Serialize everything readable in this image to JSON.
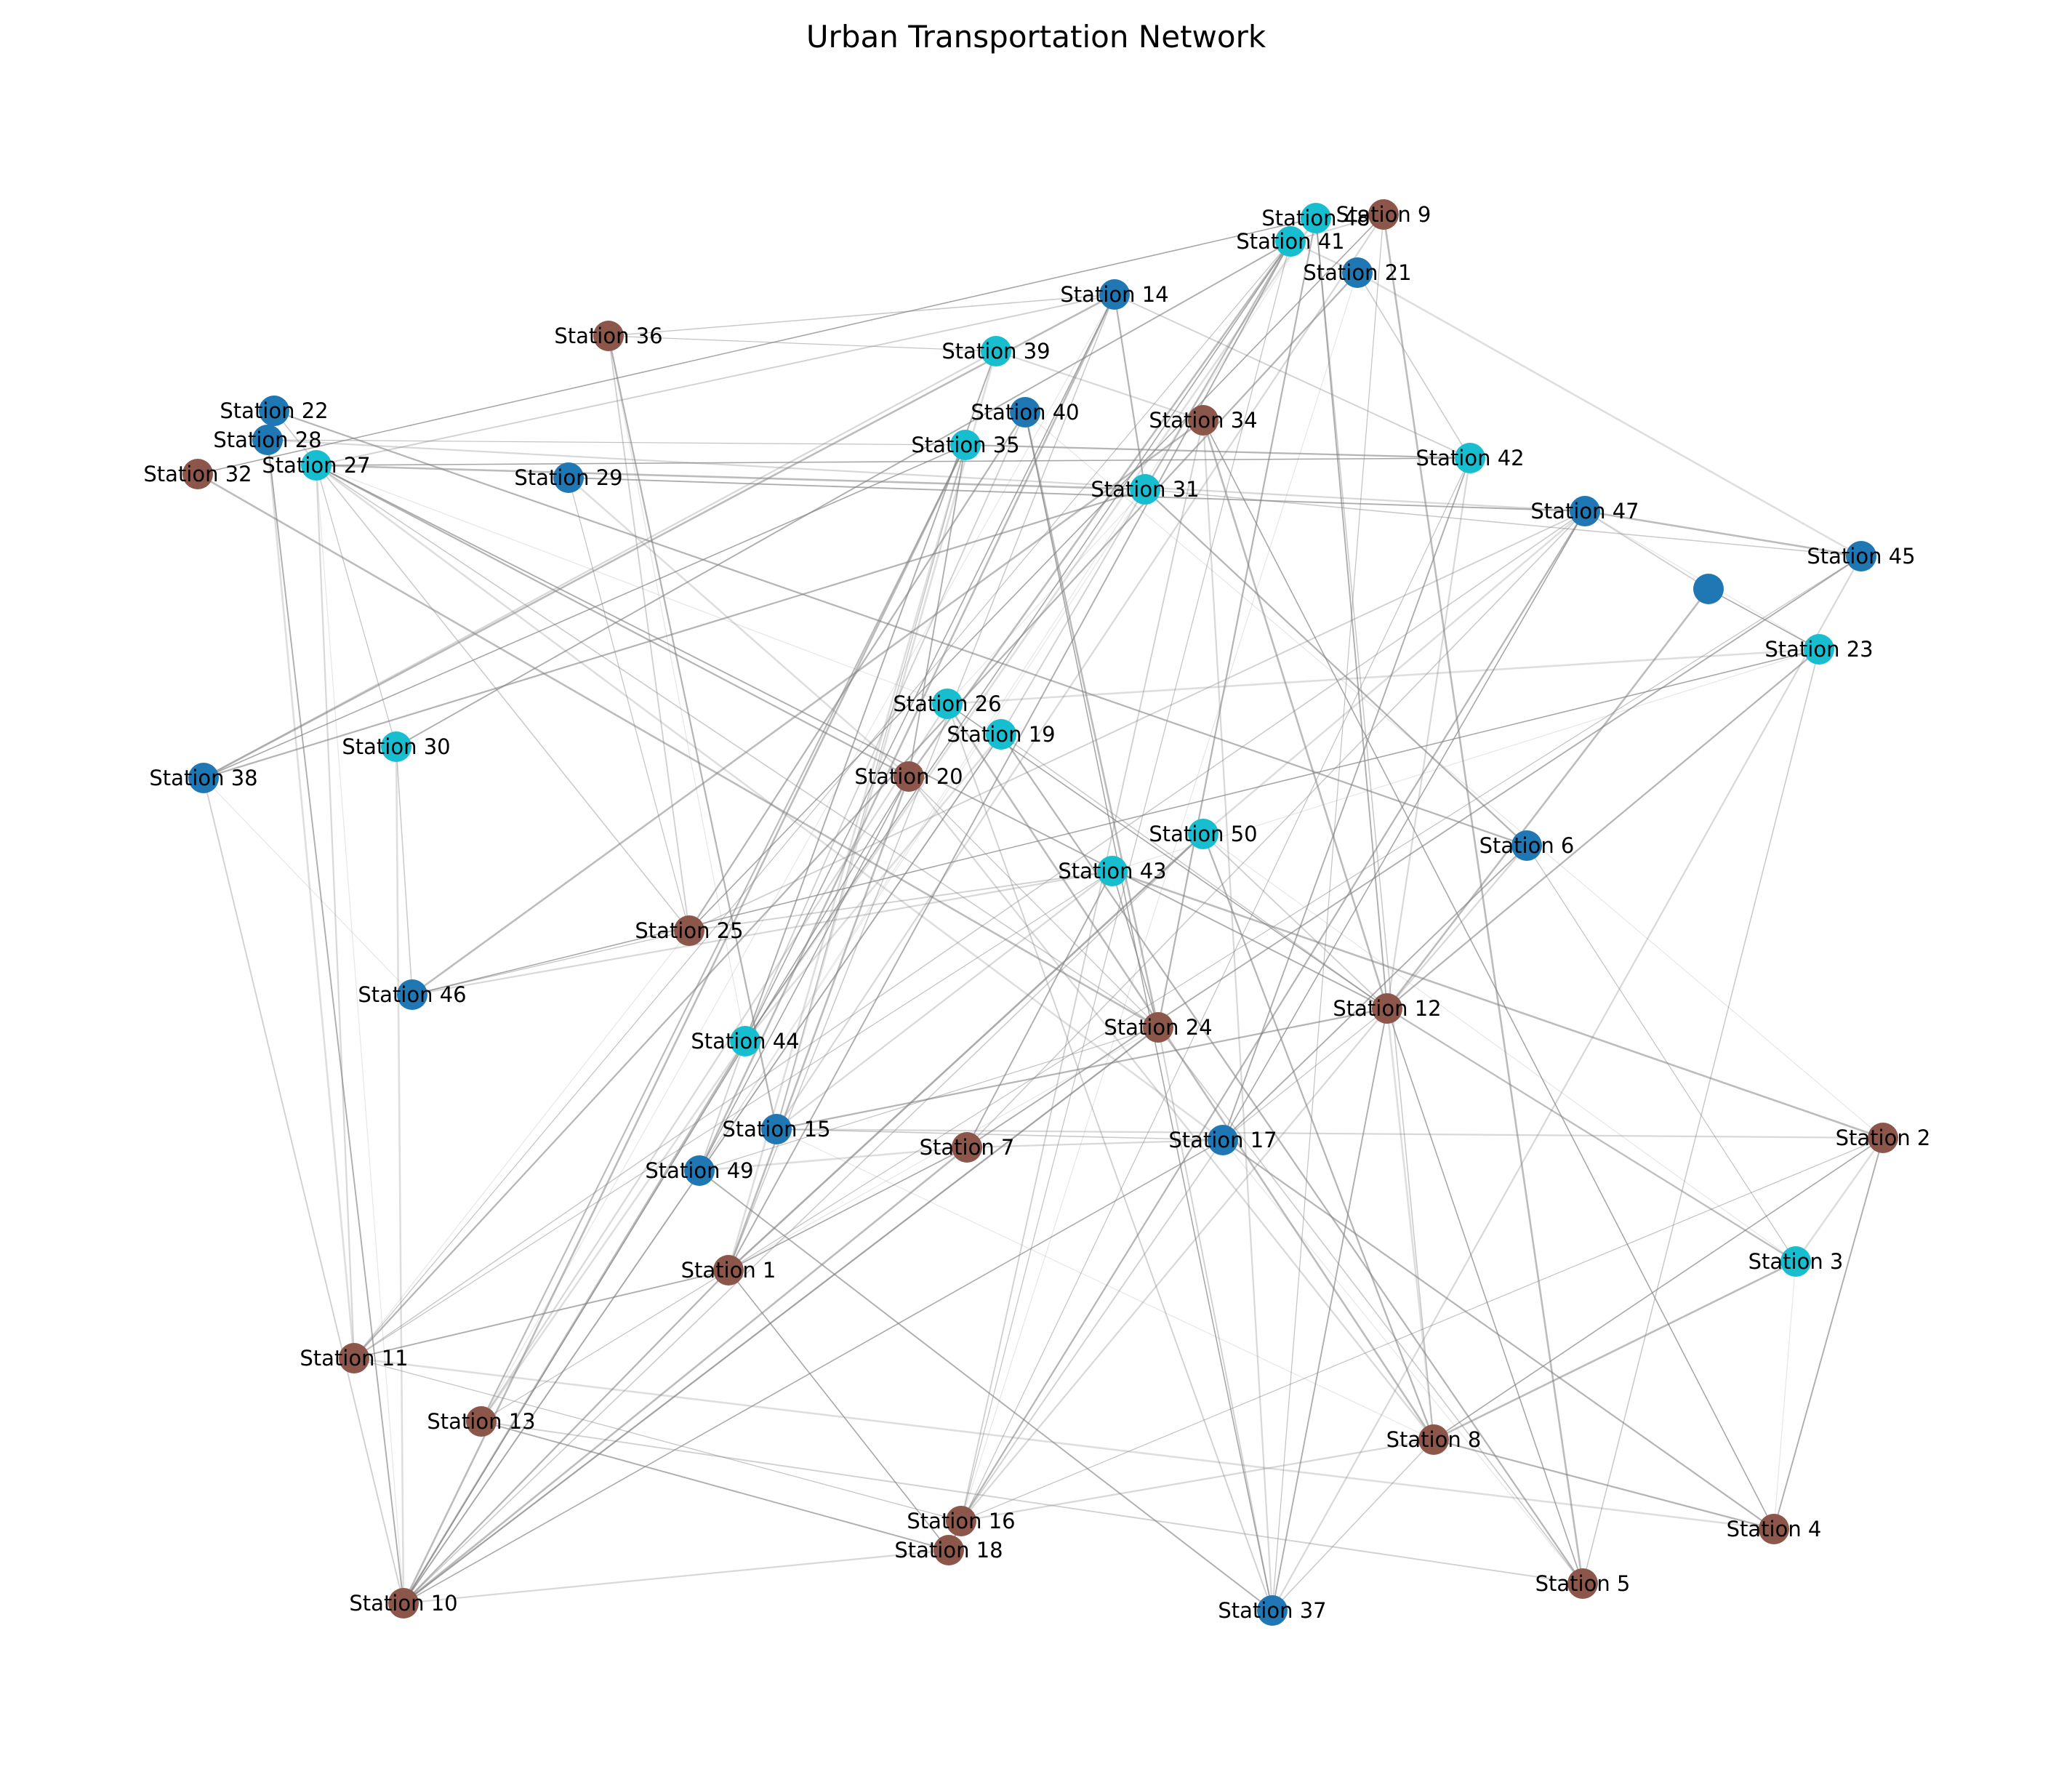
{
  "title": "Urban Transportation Network",
  "colors": {
    "brown": "#8c564b",
    "blue": "#1f77b4",
    "cyan": "#17becf",
    "edge": "#808080",
    "background": "#ffffff"
  },
  "nodes": [
    {
      "id": 1,
      "label": "Station 1",
      "color": "brown"
    },
    {
      "id": 2,
      "label": "Station 2",
      "color": "brown"
    },
    {
      "id": 3,
      "label": "Station 3",
      "color": "cyan"
    },
    {
      "id": 4,
      "label": "Station 4",
      "color": "brown"
    },
    {
      "id": 5,
      "label": "Station 5",
      "color": "brown"
    },
    {
      "id": 6,
      "label": "Station 6",
      "color": "blue"
    },
    {
      "id": 7,
      "label": "Station 7",
      "color": "brown"
    },
    {
      "id": 8,
      "label": "Station 8",
      "color": "brown"
    },
    {
      "id": 9,
      "label": "Station 9",
      "color": "brown"
    },
    {
      "id": 10,
      "label": "Station 10",
      "color": "brown"
    },
    {
      "id": 11,
      "label": "Station 11",
      "color": "brown"
    },
    {
      "id": 12,
      "label": "Station 12",
      "color": "brown"
    },
    {
      "id": 13,
      "label": "Station 13",
      "color": "brown"
    },
    {
      "id": 14,
      "label": "Station 14",
      "color": "blue"
    },
    {
      "id": 15,
      "label": "Station 15",
      "color": "blue"
    },
    {
      "id": 16,
      "label": "Station 16",
      "color": "brown"
    },
    {
      "id": 17,
      "label": "Station 17",
      "color": "blue"
    },
    {
      "id": 18,
      "label": "Station 18",
      "color": "brown"
    },
    {
      "id": 19,
      "label": "Station 19",
      "color": "cyan"
    },
    {
      "id": 20,
      "label": "Station 20",
      "color": "brown"
    },
    {
      "id": 21,
      "label": "Station 21",
      "color": "blue"
    },
    {
      "id": 22,
      "label": "Station 22",
      "color": "blue"
    },
    {
      "id": 23,
      "label": "Station 23",
      "color": "cyan"
    },
    {
      "id": 24,
      "label": "Station 24",
      "color": "brown"
    },
    {
      "id": 25,
      "label": "Station 25",
      "color": "brown"
    },
    {
      "id": 26,
      "label": "Station 26",
      "color": "cyan"
    },
    {
      "id": 27,
      "label": "Station 27",
      "color": "cyan"
    },
    {
      "id": 28,
      "label": "Station 28",
      "color": "blue"
    },
    {
      "id": 29,
      "label": "Station 29",
      "color": "blue"
    },
    {
      "id": 30,
      "label": "Station 30",
      "color": "cyan"
    },
    {
      "id": 31,
      "label": "Station 31",
      "color": "cyan"
    },
    {
      "id": 32,
      "label": "Station 32",
      "color": "brown"
    },
    {
      "id": 33,
      "label": "",
      "color": "blue"
    },
    {
      "id": 34,
      "label": "Station 34",
      "color": "brown"
    },
    {
      "id": 35,
      "label": "Station 35",
      "color": "cyan"
    },
    {
      "id": 36,
      "label": "Station 36",
      "color": "brown"
    },
    {
      "id": 37,
      "label": "Station 37",
      "color": "blue"
    },
    {
      "id": 38,
      "label": "Station 38",
      "color": "blue"
    },
    {
      "id": 39,
      "label": "Station 39",
      "color": "cyan"
    },
    {
      "id": 40,
      "label": "Station 40",
      "color": "blue"
    },
    {
      "id": 41,
      "label": "Station 41",
      "color": "cyan"
    },
    {
      "id": 42,
      "label": "Station 42",
      "color": "cyan"
    },
    {
      "id": 43,
      "label": "Station 43",
      "color": "cyan"
    },
    {
      "id": 44,
      "label": "Station 44",
      "color": "cyan"
    },
    {
      "id": 45,
      "label": "Station 45",
      "color": "blue"
    },
    {
      "id": 46,
      "label": "Station 46",
      "color": "blue"
    },
    {
      "id": 47,
      "label": "Station 47",
      "color": "blue"
    },
    {
      "id": 48,
      "label": "Station 48",
      "color": "cyan"
    },
    {
      "id": 49,
      "label": "Station 49",
      "color": "blue"
    },
    {
      "id": 50,
      "label": "Station 50",
      "color": "cyan"
    }
  ],
  "edges": [
    [
      27,
      26
    ],
    [
      27,
      20
    ],
    [
      27,
      24
    ],
    [
      27,
      17
    ],
    [
      27,
      12
    ],
    [
      27,
      30
    ],
    [
      27,
      11
    ],
    [
      27,
      42
    ],
    [
      27,
      31
    ],
    [
      27,
      14
    ],
    [
      27,
      10
    ],
    [
      22,
      6
    ],
    [
      22,
      25
    ],
    [
      28,
      11
    ],
    [
      28,
      10
    ],
    [
      28,
      35
    ],
    [
      28,
      47
    ],
    [
      32,
      48
    ],
    [
      32,
      24
    ],
    [
      36,
      25
    ],
    [
      36,
      44
    ],
    [
      36,
      15
    ],
    [
      36,
      14
    ],
    [
      29,
      20
    ],
    [
      29,
      47
    ],
    [
      29,
      25
    ],
    [
      38,
      39
    ],
    [
      38,
      35
    ],
    [
      38,
      14
    ],
    [
      38,
      10
    ],
    [
      38,
      46
    ],
    [
      38,
      31
    ],
    [
      30,
      46
    ],
    [
      30,
      10
    ],
    [
      30,
      41
    ],
    [
      46,
      25
    ],
    [
      46,
      43
    ],
    [
      46,
      23
    ],
    [
      46,
      34
    ],
    [
      25,
      43
    ],
    [
      25,
      11
    ],
    [
      25,
      40
    ],
    [
      11,
      47
    ],
    [
      11,
      4
    ],
    [
      11,
      1
    ],
    [
      11,
      41
    ],
    [
      10,
      18
    ],
    [
      10,
      20
    ],
    [
      10,
      35
    ],
    [
      10,
      24
    ],
    [
      10,
      19
    ],
    [
      10,
      1
    ],
    [
      10,
      17
    ],
    [
      13,
      35
    ],
    [
      13,
      18
    ],
    [
      13,
      1
    ],
    [
      13,
      26
    ],
    [
      14,
      44
    ],
    [
      14,
      49
    ],
    [
      14,
      42
    ],
    [
      14,
      13
    ],
    [
      14,
      31
    ],
    [
      14,
      1
    ],
    [
      39,
      15
    ],
    [
      39,
      44
    ],
    [
      39,
      36
    ],
    [
      39,
      34
    ],
    [
      40,
      37
    ],
    [
      40,
      24
    ],
    [
      40,
      44
    ],
    [
      40,
      2
    ],
    [
      35,
      42
    ],
    [
      35,
      13
    ],
    [
      35,
      1
    ],
    [
      35,
      20
    ],
    [
      35,
      15
    ],
    [
      34,
      37
    ],
    [
      34,
      4
    ],
    [
      34,
      12
    ],
    [
      34,
      16
    ],
    [
      31,
      49
    ],
    [
      31,
      6
    ],
    [
      31,
      45
    ],
    [
      31,
      41
    ],
    [
      41,
      1
    ],
    [
      41,
      16
    ],
    [
      41,
      21
    ],
    [
      41,
      44
    ],
    [
      41,
      20
    ],
    [
      41,
      19
    ],
    [
      48,
      49
    ],
    [
      48,
      24
    ],
    [
      48,
      8
    ],
    [
      48,
      13
    ],
    [
      48,
      12
    ],
    [
      9,
      37
    ],
    [
      9,
      15
    ],
    [
      9,
      25
    ],
    [
      9,
      5
    ],
    [
      9,
      41
    ],
    [
      21,
      16
    ],
    [
      21,
      11
    ],
    [
      21,
      42
    ],
    [
      21,
      45
    ],
    [
      42,
      17
    ],
    [
      42,
      18
    ],
    [
      42,
      12
    ],
    [
      47,
      17
    ],
    [
      47,
      45
    ],
    [
      47,
      25
    ],
    [
      47,
      23
    ],
    [
      47,
      16
    ],
    [
      47,
      7
    ],
    [
      47,
      50
    ],
    [
      45,
      7
    ],
    [
      45,
      1
    ],
    [
      45,
      37
    ],
    [
      33,
      23
    ],
    [
      33,
      12
    ],
    [
      33,
      47
    ],
    [
      23,
      43
    ],
    [
      23,
      12
    ],
    [
      23,
      5
    ],
    [
      23,
      26
    ],
    [
      6,
      17
    ],
    [
      6,
      3
    ],
    [
      6,
      12
    ],
    [
      26,
      12
    ],
    [
      26,
      8
    ],
    [
      26,
      37
    ],
    [
      26,
      31
    ],
    [
      19,
      5
    ],
    [
      19,
      12
    ],
    [
      19,
      44
    ],
    [
      19,
      10
    ],
    [
      20,
      24
    ],
    [
      20,
      8
    ],
    [
      20,
      49
    ],
    [
      20,
      1
    ],
    [
      50,
      12
    ],
    [
      50,
      3
    ],
    [
      50,
      8
    ],
    [
      50,
      10
    ],
    [
      50,
      1
    ],
    [
      43,
      7
    ],
    [
      43,
      11
    ],
    [
      43,
      15
    ],
    [
      43,
      24
    ],
    [
      43,
      2
    ],
    [
      24,
      37
    ],
    [
      24,
      1
    ],
    [
      24,
      10
    ],
    [
      24,
      5
    ],
    [
      12,
      3
    ],
    [
      12,
      37
    ],
    [
      12,
      17
    ],
    [
      12,
      16
    ],
    [
      12,
      5
    ],
    [
      44,
      10
    ],
    [
      44,
      49
    ],
    [
      15,
      8
    ],
    [
      15,
      12
    ],
    [
      15,
      17
    ],
    [
      49,
      7
    ],
    [
      49,
      37
    ],
    [
      49,
      24
    ],
    [
      7,
      17
    ],
    [
      7,
      1
    ],
    [
      7,
      10
    ],
    [
      17,
      16
    ],
    [
      17,
      5
    ],
    [
      17,
      4
    ],
    [
      17,
      10
    ],
    [
      2,
      3
    ],
    [
      2,
      4
    ],
    [
      2,
      16
    ],
    [
      2,
      15
    ],
    [
      2,
      8
    ],
    [
      3,
      8
    ],
    [
      3,
      12
    ],
    [
      3,
      4
    ],
    [
      8,
      4
    ],
    [
      8,
      37
    ],
    [
      8,
      12
    ],
    [
      16,
      18
    ],
    [
      16,
      11
    ],
    [
      16,
      8
    ],
    [
      1,
      18
    ],
    [
      1,
      50
    ],
    [
      5,
      13
    ]
  ]
}
